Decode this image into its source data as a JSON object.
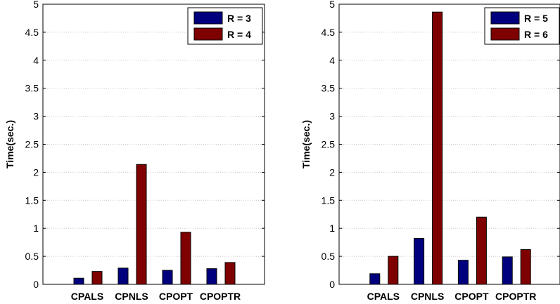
{
  "chart_data": [
    {
      "type": "bar",
      "categories": [
        "CPALS",
        "CPNLS",
        "CPOPT",
        "CPOPTR"
      ],
      "ylabel": "Time(sec.)",
      "ylim": [
        0,
        5
      ],
      "yticks": [
        "0",
        "0.5",
        "1",
        "1.5",
        "2",
        "2.5",
        "3",
        "3.5",
        "4",
        "4.5",
        "5"
      ],
      "grid": true,
      "legend_position": "top-right",
      "series": [
        {
          "name": "R = 3",
          "color": "#00007f",
          "values": [
            0.11,
            0.29,
            0.25,
            0.28
          ]
        },
        {
          "name": "R = 4",
          "color": "#7f0000",
          "values": [
            0.23,
            2.14,
            0.93,
            0.39
          ]
        }
      ]
    },
    {
      "type": "bar",
      "categories": [
        "CPALS",
        "CPNLS",
        "CPOPT",
        "CPOPTR"
      ],
      "ylabel": "Time(sec.)",
      "ylim": [
        0,
        5
      ],
      "yticks": [
        "0",
        "0.5",
        "1",
        "1.5",
        "2",
        "2.5",
        "3",
        "3.5",
        "4",
        "4.5",
        "5"
      ],
      "grid": true,
      "legend_position": "top-right",
      "series": [
        {
          "name": "R = 5",
          "color": "#00007f",
          "values": [
            0.19,
            0.82,
            0.43,
            0.49
          ]
        },
        {
          "name": "R = 6",
          "color": "#7f0000",
          "values": [
            0.5,
            4.86,
            1.2,
            0.62
          ]
        }
      ]
    }
  ]
}
